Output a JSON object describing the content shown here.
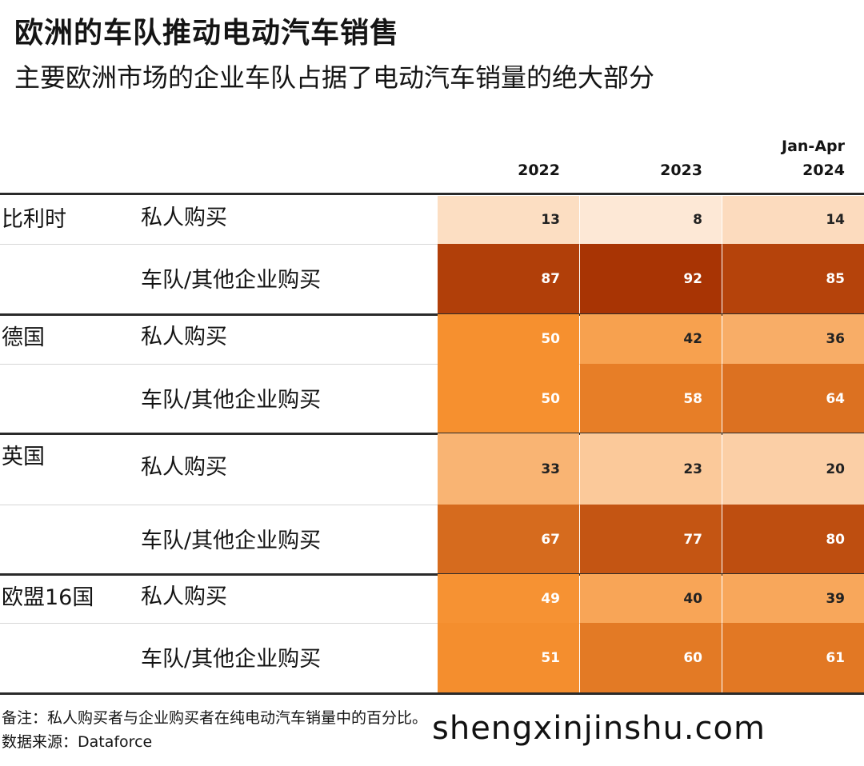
{
  "header": {
    "title": "欧洲的车队推动电动汽车销售",
    "subtitle": "主要欧洲市场的企业车队占据了电动汽车销量的绝大部分"
  },
  "chart_data": {
    "type": "table",
    "columns": [
      {
        "line1": "",
        "line2": "2022"
      },
      {
        "line1": "",
        "line2": "2023"
      },
      {
        "line1": "Jan-Apr",
        "line2": "2024"
      }
    ],
    "rows": [
      {
        "country": "比利时",
        "buyer": "私人购买",
        "values": [
          13,
          8,
          14
        ]
      },
      {
        "country": "",
        "buyer": "车队/其他企业购买",
        "values": [
          87,
          92,
          85
        ]
      },
      {
        "country": "德国",
        "buyer": "私人购买",
        "values": [
          50,
          42,
          36
        ]
      },
      {
        "country": "",
        "buyer": "车队/其他企业购买",
        "values": [
          50,
          58,
          64
        ]
      },
      {
        "country": "英国",
        "buyer": "私人购买",
        "values": [
          33,
          23,
          20
        ]
      },
      {
        "country": "",
        "buyer": "车队/其他企业购买",
        "values": [
          67,
          77,
          80
        ]
      },
      {
        "country": "欧盟16国",
        "buyer": "私人购买",
        "values": [
          49,
          40,
          39
        ]
      },
      {
        "country": "",
        "buyer": "车队/其他企业购买",
        "values": [
          51,
          60,
          61
        ]
      }
    ],
    "color_scale": {
      "low": "#fde8d6",
      "mid": "#f6902f",
      "high": "#a83404",
      "domain": [
        8,
        50,
        92
      ]
    }
  },
  "footer": {
    "note": "备注：私人购买者与企业购买者在纯电动汽车销量中的百分比。",
    "source": "数据来源：Dataforce",
    "watermark": "shengxinjinshu.com"
  }
}
